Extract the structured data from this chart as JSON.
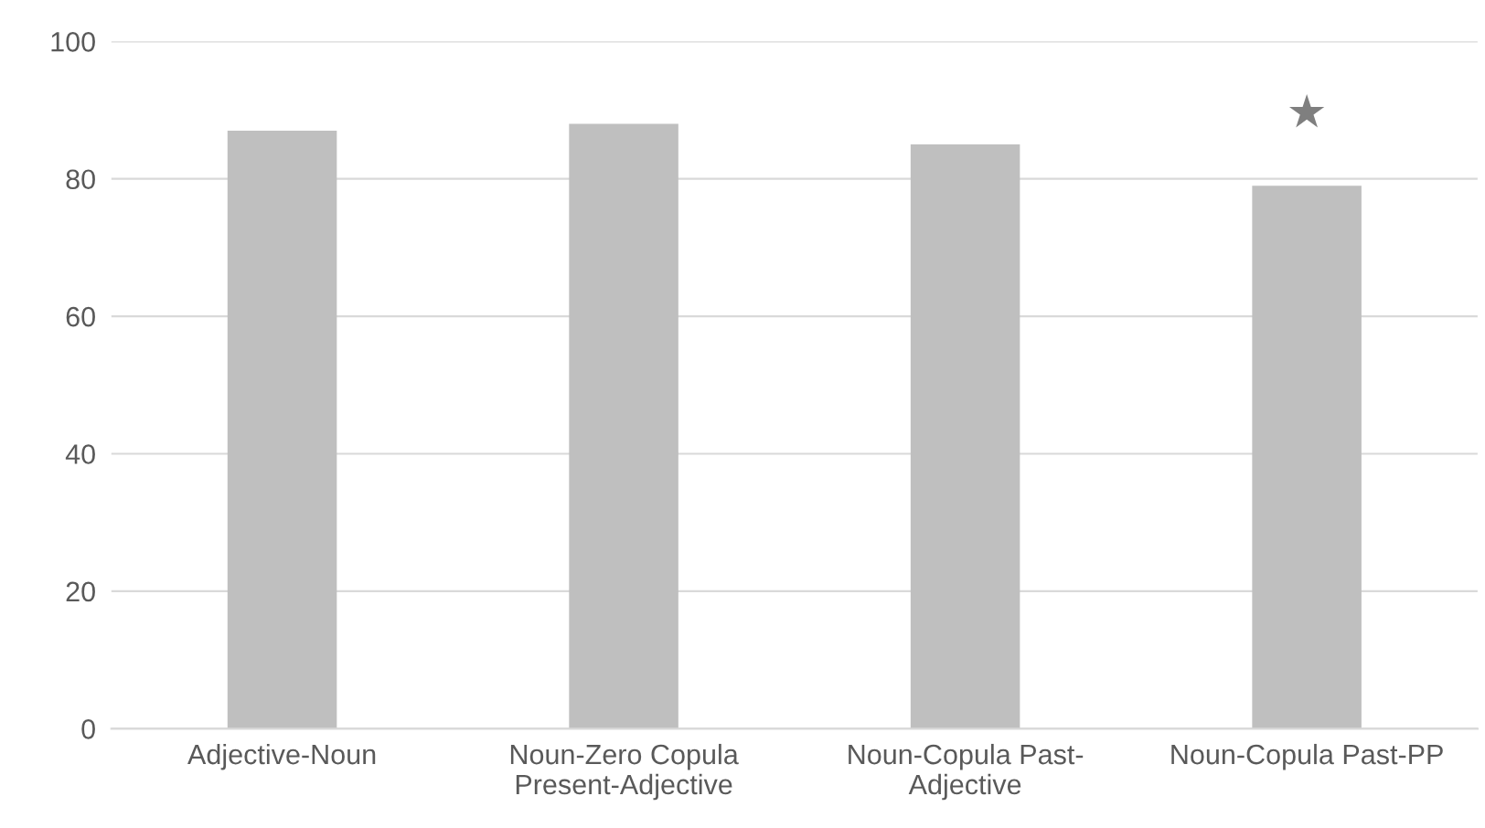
{
  "chart_data": {
    "type": "bar",
    "categories": [
      "Adjective-Noun",
      "Noun-Zero Copula\nPresent-Adjective",
      "Noun-Copula Past-\nAdjective",
      "Noun-Copula Past-PP"
    ],
    "values": [
      87,
      88,
      85,
      79
    ],
    "color": "#bfbfbf",
    "ylim": [
      0,
      100
    ],
    "yticks": [
      0,
      20,
      40,
      60,
      80,
      100
    ],
    "grid": "y",
    "annotations": [
      "★"
    ]
  }
}
